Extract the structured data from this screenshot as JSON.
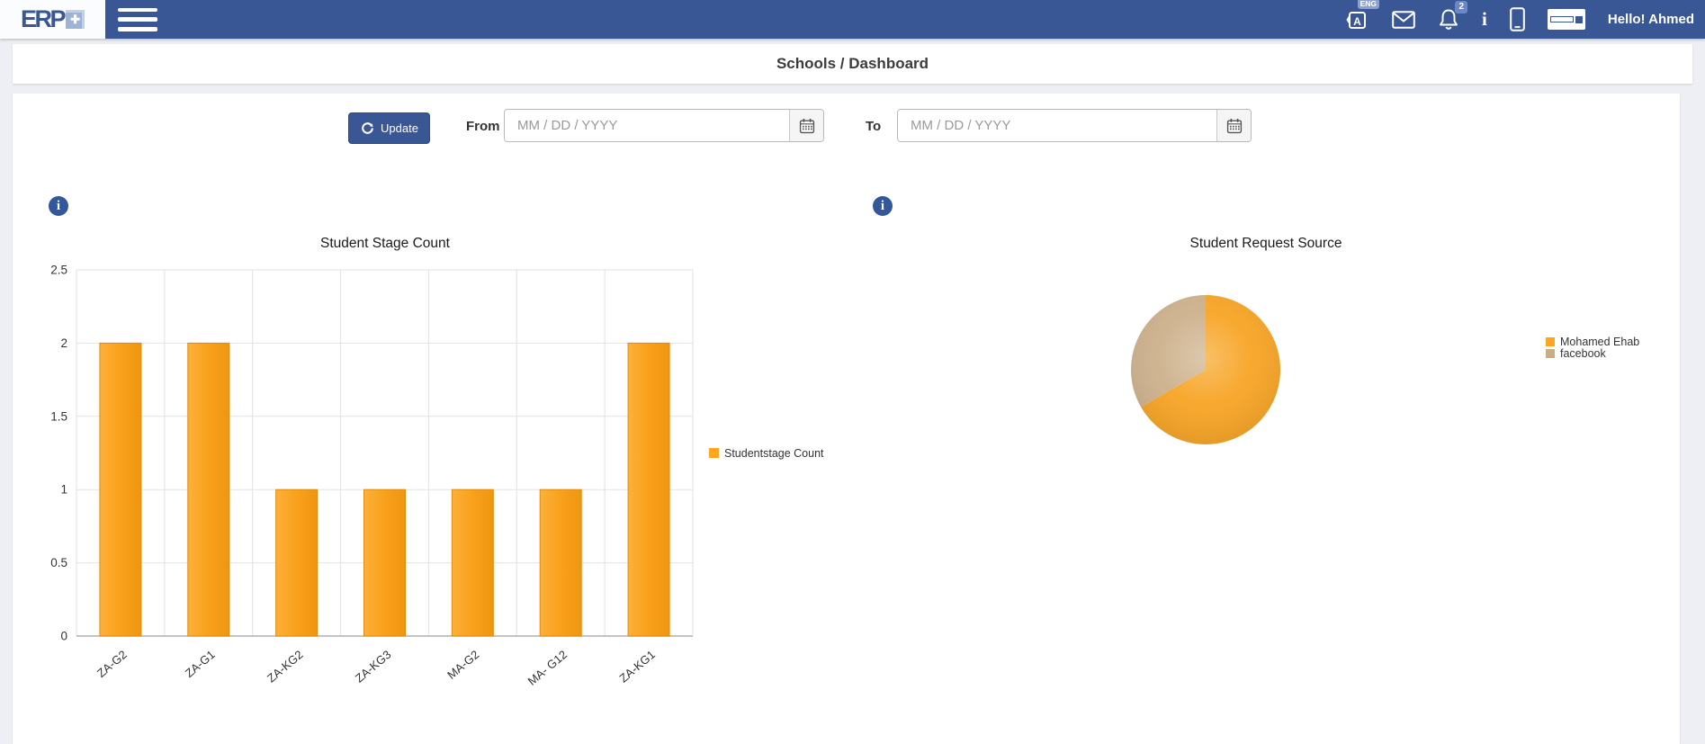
{
  "navbar": {
    "logo": "ERP",
    "language_badge": "ENG",
    "language_letter": "A",
    "notifications_count": "2",
    "greeting": "Hello! Ahmed"
  },
  "breadcrumb": {
    "title": "Schools / Dashboard"
  },
  "filters": {
    "update": "Update",
    "from": "From",
    "to": "To",
    "date_placeholder": "MM / DD / YYYY"
  },
  "icons": {
    "logo_mark": "✚",
    "chart_info": "i"
  },
  "colors": {
    "navbar": "#3A5795",
    "accent_orange": "#F9A21B",
    "pie_tan": "#CDB18C",
    "info_icon": "#33579B"
  },
  "chart_data": [
    {
      "type": "bar",
      "title": "Student Stage Count",
      "categories": [
        "ZA-G2",
        "ZA-G1",
        "ZA-KG2",
        "ZA-KG3",
        "MA-G2",
        "MA- G12",
        "ZA-KG1"
      ],
      "values": [
        2,
        2,
        1,
        1,
        1,
        1,
        2
      ],
      "series_name": "Studentstage Count",
      "xlabel": "",
      "ylabel": "",
      "ylim": [
        0,
        2.5
      ],
      "yticks": [
        0,
        0.5,
        1,
        1.5,
        2,
        2.5
      ],
      "grid": true,
      "legend_position": "right",
      "bar_gradient": [
        "#FDB03A",
        "#F9A21E",
        "#F0950F"
      ],
      "bar_border": "#DE8D12",
      "legend_color": "#FFA621"
    },
    {
      "type": "pie",
      "title": "Student Request Source",
      "slices": [
        {
          "label": "Mohamed Ehab",
          "value": 2,
          "color": "#F7A424",
          "legend_color": "#FFA621"
        },
        {
          "label": "facebook",
          "value": 1,
          "color": "#CDB18C",
          "legend_color": "#C9AD85"
        }
      ],
      "legend_position": "right",
      "start_angle_deg": 0,
      "direction": "clockwise"
    }
  ]
}
